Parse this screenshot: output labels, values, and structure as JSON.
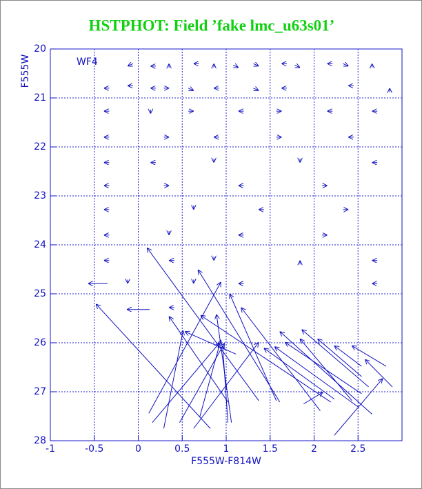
{
  "chart_data": {
    "type": "quiver",
    "title": "HSTPHOT: Field ’fake lmc_u63s01’",
    "x_label": "F555W-F814W",
    "y_label": "F555W",
    "annotation": "WF4",
    "xlim": [
      -1,
      3
    ],
    "ylim": [
      28,
      20
    ],
    "xticks": [
      -1,
      -0.5,
      0,
      0.5,
      1,
      1.5,
      2,
      2.5
    ],
    "yticks": [
      20,
      21,
      22,
      23,
      24,
      25,
      26,
      27,
      28
    ],
    "grid": true,
    "color": "#1010c0",
    "x_head": [
      -0.57,
      -0.13,
      -0.48,
      0.1,
      0.68,
      0.94,
      0.35,
      0.51,
      0.71,
      0.89,
      1.04,
      1.17,
      0.92,
      0.94,
      0.96,
      0.98,
      1.37,
      1.43,
      1.55,
      1.61,
      1.67,
      1.86,
      1.84,
      2.04,
      2.23,
      2.43,
      2.58,
      2.78,
      2.1,
      0.53,
      -0.12,
      0.14,
      0.35,
      0.63,
      0.86,
      1.14,
      1.37,
      1.63,
      1.84,
      2.15,
      2.39,
      2.66,
      -0.39,
      -0.12,
      0.14,
      0.35,
      0.63,
      0.86,
      1.37,
      1.63,
      2.39,
      2.86,
      -0.39,
      0.14,
      0.63,
      1.14,
      1.63,
      2.15,
      2.66,
      -0.39,
      0.35,
      0.86,
      1.63,
      2.39,
      -0.39,
      0.14,
      0.86,
      1.84,
      2.66,
      -0.39,
      0.35,
      1.14,
      2.15,
      -0.39,
      0.63,
      1.37,
      2.39,
      -0.39,
      0.35,
      1.14,
      2.15,
      -0.39,
      0.35,
      0.86,
      1.84,
      2.66,
      -0.12,
      0.63,
      1.14,
      2.66,
      0.35
    ],
    "y_head": [
      24.79,
      25.32,
      25.21,
      24.06,
      24.51,
      24.76,
      25.46,
      25.75,
      25.44,
      25.42,
      25.0,
      25.28,
      26.01,
      25.94,
      26.06,
      26.01,
      25.99,
      26.11,
      26.08,
      25.77,
      25.99,
      25.73,
      25.92,
      25.92,
      26.06,
      26.06,
      26.34,
      26.73,
      27.01,
      25.77,
      20.35,
      20.35,
      20.3,
      20.3,
      20.3,
      20.38,
      20.35,
      20.3,
      20.38,
      20.3,
      20.35,
      20.3,
      20.8,
      20.75,
      20.8,
      20.8,
      20.85,
      20.8,
      20.85,
      20.8,
      20.75,
      20.8,
      21.27,
      21.32,
      21.27,
      21.27,
      21.27,
      21.27,
      21.27,
      21.8,
      21.8,
      21.8,
      21.8,
      21.8,
      22.32,
      22.32,
      22.32,
      22.32,
      22.32,
      22.79,
      22.79,
      22.79,
      22.79,
      23.28,
      23.28,
      23.28,
      23.28,
      23.8,
      23.8,
      23.8,
      23.8,
      24.32,
      24.32,
      24.32,
      24.32,
      24.32,
      24.79,
      24.79,
      24.79,
      24.79,
      25.28
    ],
    "x_tail": [
      -0.35,
      0.13,
      0.82,
      1.37,
      1.61,
      0.12,
      1.02,
      0.29,
      2.19,
      1.06,
      1.57,
      2.07,
      0.16,
      0.7,
      1.02,
      0.47,
      0.63,
      2.23,
      2.51,
      2.66,
      2.54,
      2.62,
      2.43,
      2.54,
      2.54,
      2.82,
      2.89,
      2.23,
      1.88,
      1.11,
      -0.06,
      0.2,
      0.35,
      0.69,
      0.86,
      1.08,
      1.31,
      1.69,
      1.78,
      2.21,
      2.33,
      2.66,
      -0.33,
      -0.06,
      0.2,
      0.29,
      0.57,
      0.92,
      1.31,
      1.69,
      2.45,
      2.86,
      -0.33,
      0.14,
      0.57,
      1.2,
      1.57,
      2.21,
      2.72,
      -0.33,
      0.29,
      0.92,
      1.57,
      2.45,
      -0.33,
      0.2,
      0.86,
      1.84,
      2.72,
      -0.33,
      0.29,
      1.2,
      2.09,
      -0.33,
      0.63,
      1.43,
      2.33,
      -0.33,
      0.35,
      1.2,
      2.09,
      -0.33,
      0.41,
      0.86,
      1.84,
      2.72,
      -0.12,
      0.63,
      1.2,
      2.72,
      0.41
    ],
    "y_tail": [
      24.79,
      25.32,
      27.75,
      27.18,
      27.21,
      27.44,
      27.21,
      27.75,
      27.21,
      27.63,
      27.18,
      27.39,
      27.63,
      27.51,
      27.63,
      27.63,
      27.75,
      27.15,
      27.32,
      27.46,
      27.04,
      26.9,
      27.18,
      26.69,
      26.48,
      26.48,
      26.9,
      27.89,
      27.25,
      26.23,
      20.3,
      20.35,
      20.38,
      20.3,
      20.38,
      20.33,
      20.3,
      20.3,
      20.33,
      20.3,
      20.3,
      20.38,
      20.8,
      20.75,
      20.8,
      20.8,
      20.8,
      20.8,
      20.8,
      20.8,
      20.75,
      20.88,
      21.27,
      21.24,
      21.27,
      21.27,
      21.27,
      21.27,
      21.27,
      21.8,
      21.8,
      21.8,
      21.8,
      21.8,
      22.32,
      22.32,
      22.24,
      22.24,
      22.32,
      22.79,
      22.79,
      22.79,
      22.79,
      23.28,
      23.2,
      23.28,
      23.28,
      23.8,
      23.72,
      23.8,
      23.8,
      24.32,
      24.32,
      24.24,
      24.4,
      24.32,
      24.71,
      24.71,
      24.79,
      24.79,
      25.28
    ]
  }
}
